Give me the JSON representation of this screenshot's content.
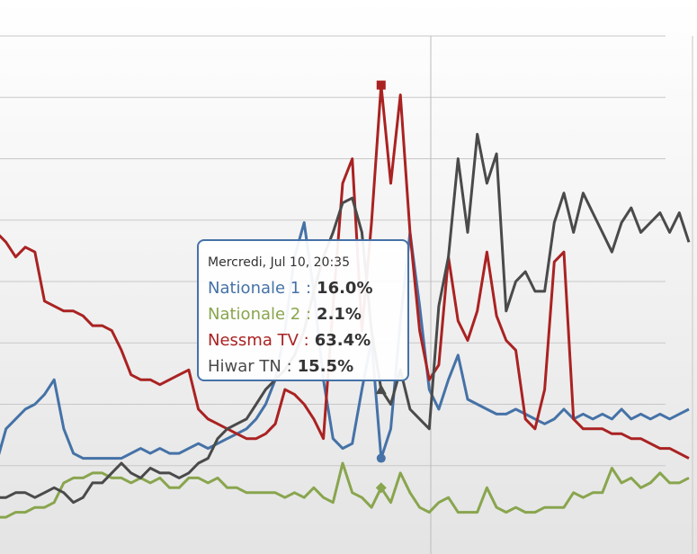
{
  "chart_data": {
    "type": "line",
    "title": "",
    "xlabel": "",
    "ylabel": "",
    "ylim": [
      0,
      100
    ],
    "grid": true,
    "series": [
      {
        "name": "Nationale 1",
        "color": "#4572a7",
        "values": [
          13,
          20,
          22,
          24,
          25,
          27,
          30,
          20,
          15,
          14,
          14,
          14,
          14,
          14,
          15,
          16,
          15,
          16,
          15,
          15,
          16,
          17,
          16,
          17,
          18,
          19,
          20,
          22,
          25,
          30,
          40,
          55,
          62,
          48,
          30,
          18,
          16,
          17,
          28,
          38,
          14,
          20,
          42,
          60,
          45,
          28,
          24,
          30,
          35,
          26,
          25,
          24,
          23,
          23,
          24,
          23,
          22,
          21,
          22,
          24,
          22,
          23,
          22,
          23,
          22,
          24,
          22,
          23,
          22,
          23,
          22,
          23,
          24
        ]
      },
      {
        "name": "Nationale 2",
        "color": "#89a54e",
        "values": [
          2,
          2,
          3,
          3,
          4,
          4,
          5,
          9,
          10,
          10,
          11,
          11,
          10,
          10,
          9,
          10,
          9,
          10,
          8,
          8,
          10,
          10,
          9,
          10,
          8,
          8,
          7,
          7,
          7,
          7,
          6,
          7,
          6,
          8,
          6,
          5,
          13,
          7,
          6,
          4,
          8,
          5,
          11,
          7,
          4,
          3,
          5,
          6,
          3,
          3,
          3,
          8,
          4,
          3,
          4,
          3,
          3,
          4,
          4,
          4,
          7,
          6,
          7,
          7,
          12,
          9,
          10,
          8,
          9,
          11,
          9,
          9,
          10
        ]
      },
      {
        "name": "Nessma TV",
        "color": "#aa2222",
        "values": [
          60,
          58,
          55,
          57,
          56,
          46,
          45,
          44,
          44,
          43,
          41,
          41,
          40,
          36,
          31,
          30,
          30,
          29,
          30,
          31,
          32,
          24,
          22,
          21,
          20,
          19,
          18,
          18,
          19,
          21,
          28,
          27,
          25,
          22,
          18,
          45,
          70,
          75,
          40,
          62,
          90,
          70,
          88,
          60,
          40,
          30,
          33,
          55,
          42,
          38,
          44,
          56,
          43,
          38,
          36,
          22,
          20,
          28,
          54,
          56,
          22,
          20,
          20,
          20,
          19,
          19,
          18,
          18,
          17,
          16,
          16,
          15,
          14
        ]
      },
      {
        "name": "Hiwar TN",
        "color": "#4a4a4a",
        "values": [
          6,
          6,
          7,
          7,
          6,
          7,
          8,
          7,
          5,
          6,
          9,
          9,
          11,
          13,
          11,
          10,
          12,
          11,
          11,
          10,
          11,
          13,
          14,
          18,
          20,
          21,
          22,
          25,
          28,
          30,
          32,
          35,
          40,
          48,
          55,
          60,
          66,
          67,
          60,
          40,
          28,
          25,
          32,
          24,
          22,
          20,
          45,
          55,
          75,
          60,
          80,
          70,
          76,
          44,
          50,
          52,
          48,
          48,
          62,
          68,
          60,
          68,
          64,
          60,
          56,
          62,
          65,
          60,
          62,
          64,
          60,
          64,
          58
        ]
      }
    ]
  },
  "tooltip": {
    "date": "Mercredi, Jul 10, 20:35",
    "items": [
      {
        "label": "Nationale 1 :",
        "value": "16.0%",
        "color": "#4572a7"
      },
      {
        "label": "Nationale 2 :",
        "value": "2.1%",
        "color": "#89a54e"
      },
      {
        "label": "Nessma TV :",
        "value": "63.4%",
        "color": "#aa2222"
      },
      {
        "label": "Hiwar TN :",
        "value": "15.5%",
        "color": "#4a4a4a"
      }
    ]
  },
  "colors": {
    "grid": "#c8c8c8",
    "background_top": "#ffffff",
    "background_bottom": "#e6e6e6"
  }
}
